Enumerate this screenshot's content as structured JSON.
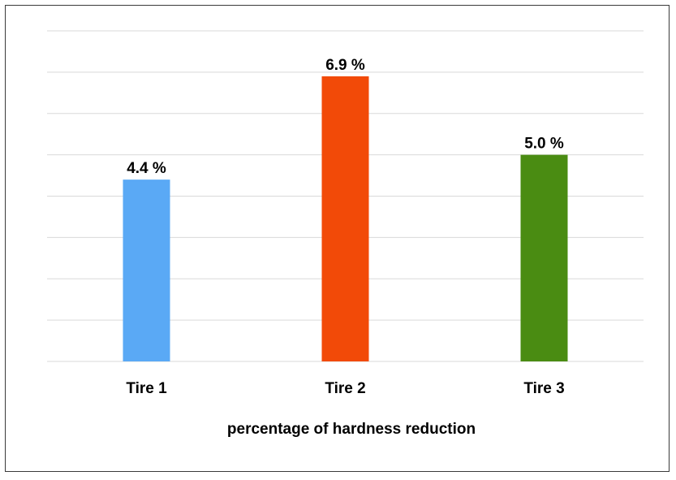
{
  "chart_data": {
    "type": "bar",
    "title": "",
    "xlabel": "percentage of hardness reduction",
    "ylabel": "",
    "categories": [
      "Tire 1",
      "Tire 2",
      "Tire 3"
    ],
    "values": [
      4.4,
      6.9,
      5.0
    ],
    "value_labels": [
      "4.4 %",
      "6.9 %",
      "5.0 %"
    ],
    "colors": [
      "#5aa9f5",
      "#f24a08",
      "#4a8c12"
    ],
    "ylim": [
      0,
      8
    ],
    "grid": true,
    "legend": "none"
  }
}
